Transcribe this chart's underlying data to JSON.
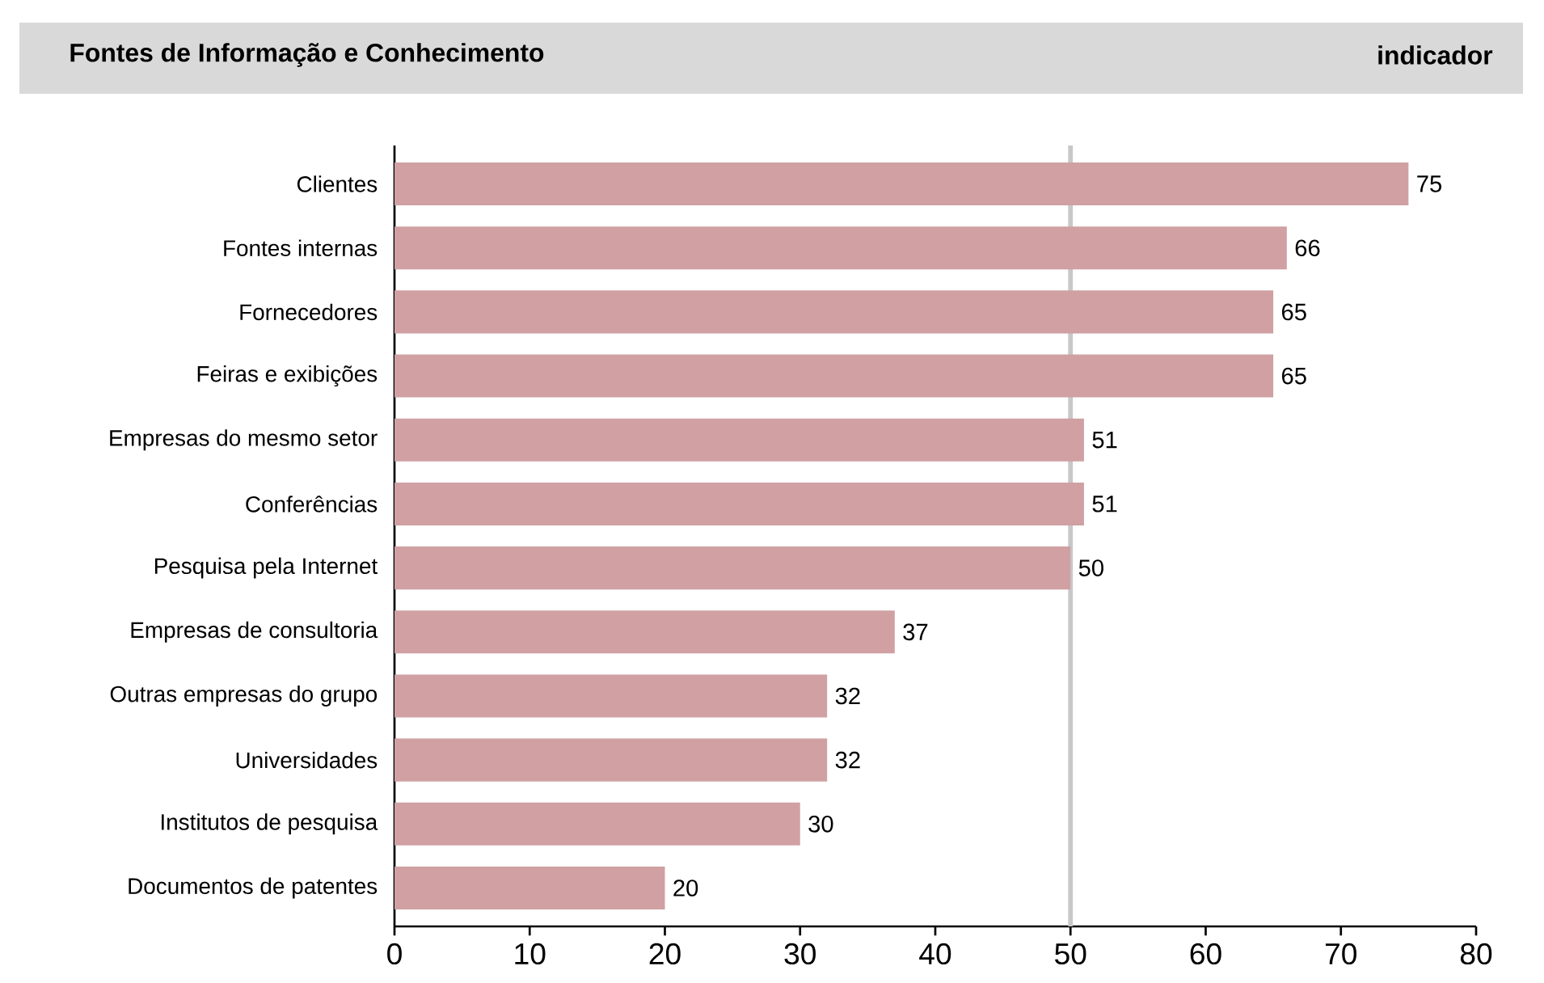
{
  "chart_data": {
    "type": "bar",
    "orientation": "horizontal",
    "title": "Fontes de Informação e Conhecimento",
    "subtitle": "indicador",
    "categories": [
      "Clientes",
      "Fontes internas",
      "Fornecedores",
      "Feiras e exibições",
      "Empresas do mesmo setor",
      "Conferências",
      "Pesquisa pela Internet",
      "Empresas de consultoria",
      "Outras empresas do grupo",
      "Universidades",
      "Institutos de pesquisa",
      "Documentos de patentes"
    ],
    "values": [
      75,
      66,
      65,
      65,
      51,
      51,
      50,
      37,
      32,
      32,
      30,
      20
    ],
    "value_labels": [
      "75",
      "66",
      "65",
      "65",
      "51",
      "51",
      "50",
      "37",
      "32",
      "32",
      "30",
      "20"
    ],
    "color": "#d0a0a2",
    "xlim": [
      0,
      80
    ],
    "xticks": [
      0,
      10,
      20,
      30,
      40,
      50,
      60,
      70,
      80
    ],
    "ref_lines": [
      {
        "axis": "x",
        "value": 50,
        "color": "#c8c8c8"
      }
    ]
  }
}
